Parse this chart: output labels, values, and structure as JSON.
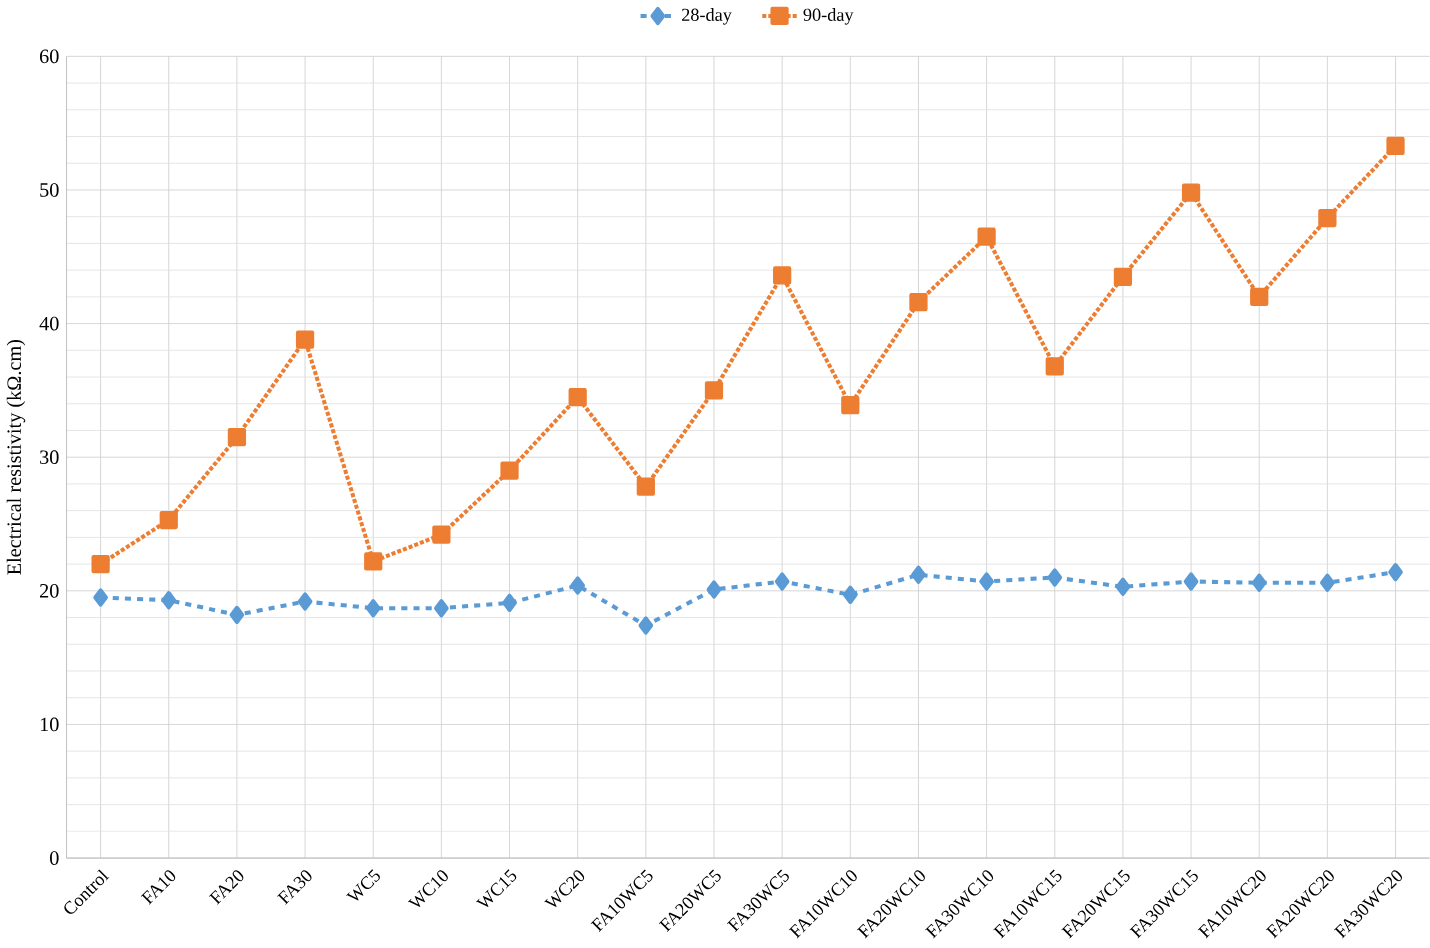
{
  "chart_data": {
    "type": "line",
    "ylabel": "Electrical resistivity (kΩ.cm)",
    "categories": [
      "Control",
      "FA10",
      "FA20",
      "FA30",
      "WC5",
      "WC10",
      "WC15",
      "WC20",
      "FA10WC5",
      "FA20WC5",
      "FA30WC5",
      "FA10WC10",
      "FA20WC10",
      "FA30WC10",
      "FA10WC15",
      "FA20WC15",
      "FA30WC15",
      "FA10WC20",
      "FA20WC20",
      "FA30WC20"
    ],
    "series": [
      {
        "name": "28-day",
        "color": "#5b9bd5",
        "marker": "diamond",
        "line_style": "dashed",
        "values": [
          19.5,
          19.3,
          18.2,
          19.2,
          18.7,
          18.7,
          19.1,
          20.4,
          17.4,
          20.1,
          20.7,
          19.7,
          21.2,
          20.7,
          21.0,
          20.3,
          20.7,
          20.6,
          20.6,
          21.4
        ]
      },
      {
        "name": "90-day",
        "color": "#ed7d31",
        "marker": "square",
        "line_style": "dotted",
        "values": [
          22.0,
          25.3,
          31.5,
          38.8,
          22.2,
          24.2,
          29.0,
          34.5,
          27.8,
          35.0,
          43.6,
          33.9,
          41.6,
          46.5,
          36.8,
          43.5,
          49.8,
          42.0,
          47.9,
          53.3
        ]
      }
    ],
    "ylim": [
      0,
      60
    ],
    "yticks": [
      0,
      10,
      20,
      30,
      40,
      50,
      60
    ],
    "grid": true,
    "legend": "top"
  }
}
